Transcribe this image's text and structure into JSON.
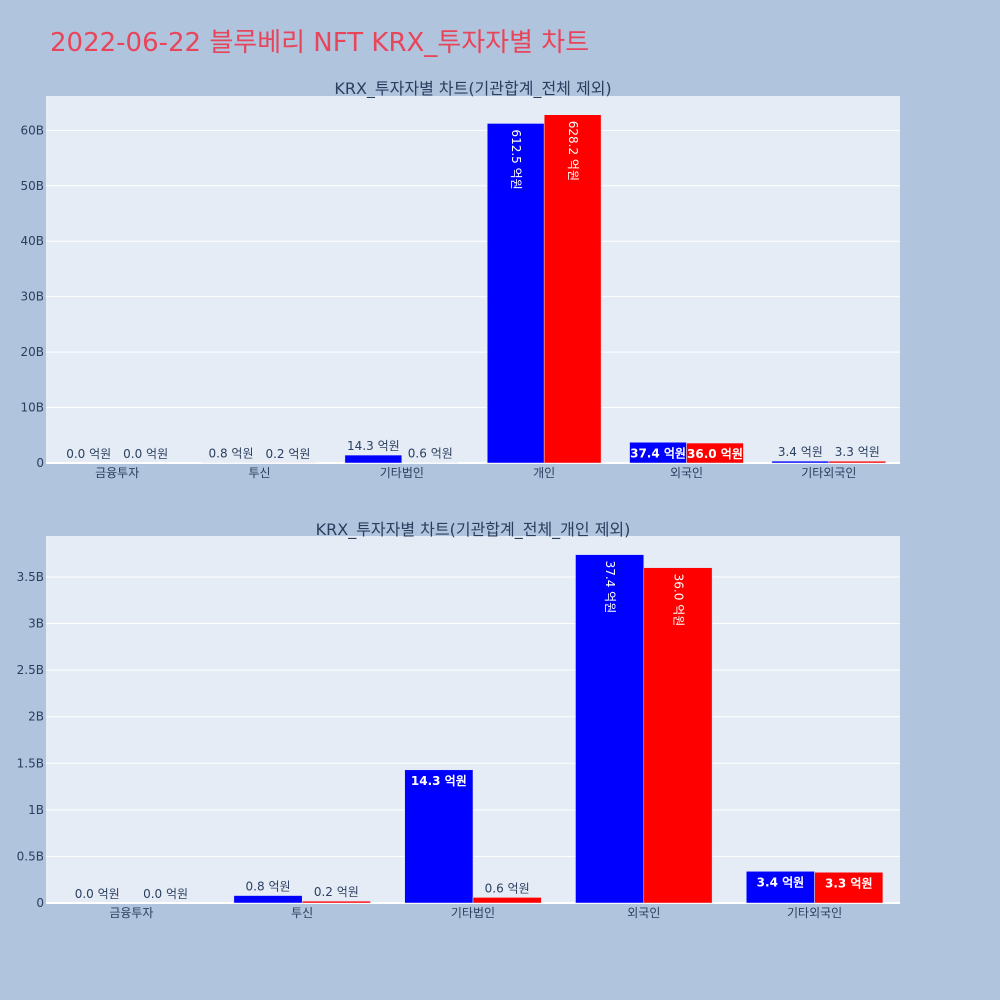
{
  "page": {
    "title": "2022-06-22 블루베리 NFT KRX_투자자별 차트"
  },
  "colors": {
    "page_bg": "#b0c4de",
    "plot_bg": "#e5ecf6",
    "title": "#e8455a",
    "series_1": "#0000ff",
    "series_2": "#ff0000",
    "text": "#2a3f5f"
  },
  "chart_data": [
    {
      "type": "bar",
      "title": "KRX_투자자별 차트(기관합계_전체 제외)",
      "categories": [
        "금융투자",
        "투신",
        "기타법인",
        "개인",
        "외국인",
        "기타외국인"
      ],
      "series": [
        {
          "color": "#0000ff",
          "values": [
            0.0,
            0.08,
            1.43,
            61.25,
            3.74,
            0.34
          ],
          "labels": [
            "0.0 억원",
            "0.8 억원",
            "14.3 억원",
            "612.5 억원",
            "37.4 억원",
            "3.4 억원"
          ]
        },
        {
          "color": "#ff0000",
          "values": [
            0.0,
            0.02,
            0.06,
            62.82,
            3.6,
            0.33
          ],
          "labels": [
            "0.0 억원",
            "0.2 억원",
            "0.6 억원",
            "628.2 억원",
            "36.0 억원",
            "3.3 억원"
          ]
        }
      ],
      "yticks": [
        0,
        10,
        20,
        30,
        40,
        50,
        60
      ],
      "ytick_labels": [
        "0",
        "10B",
        "20B",
        "30B",
        "40B",
        "50B",
        "60B"
      ],
      "ylim": [
        0,
        66.2
      ],
      "grid": true,
      "legend": "none"
    },
    {
      "type": "bar",
      "title": "KRX_투자자별 차트(기관합계_전체_개인 제외)",
      "categories": [
        "금융투자",
        "투신",
        "기타법인",
        "외국인",
        "기타외국인"
      ],
      "series": [
        {
          "color": "#0000ff",
          "values": [
            0.0,
            0.08,
            1.43,
            3.74,
            0.34
          ],
          "labels": [
            "0.0 억원",
            "0.8 억원",
            "14.3 억원",
            "37.4 억원",
            "3.4 억원"
          ]
        },
        {
          "color": "#ff0000",
          "values": [
            0.0,
            0.02,
            0.06,
            3.6,
            0.33
          ],
          "labels": [
            "0.0 억원",
            "0.2 억원",
            "0.6 억원",
            "36.0 억원",
            "3.3 억원"
          ]
        }
      ],
      "yticks": [
        0,
        0.5,
        1,
        1.5,
        2,
        2.5,
        3,
        3.5
      ],
      "ytick_labels": [
        "0",
        "0.5B",
        "1B",
        "1.5B",
        "2B",
        "2.5B",
        "3B",
        "3.5B"
      ],
      "ylim": [
        0,
        3.94
      ],
      "grid": true,
      "legend": "none"
    }
  ]
}
